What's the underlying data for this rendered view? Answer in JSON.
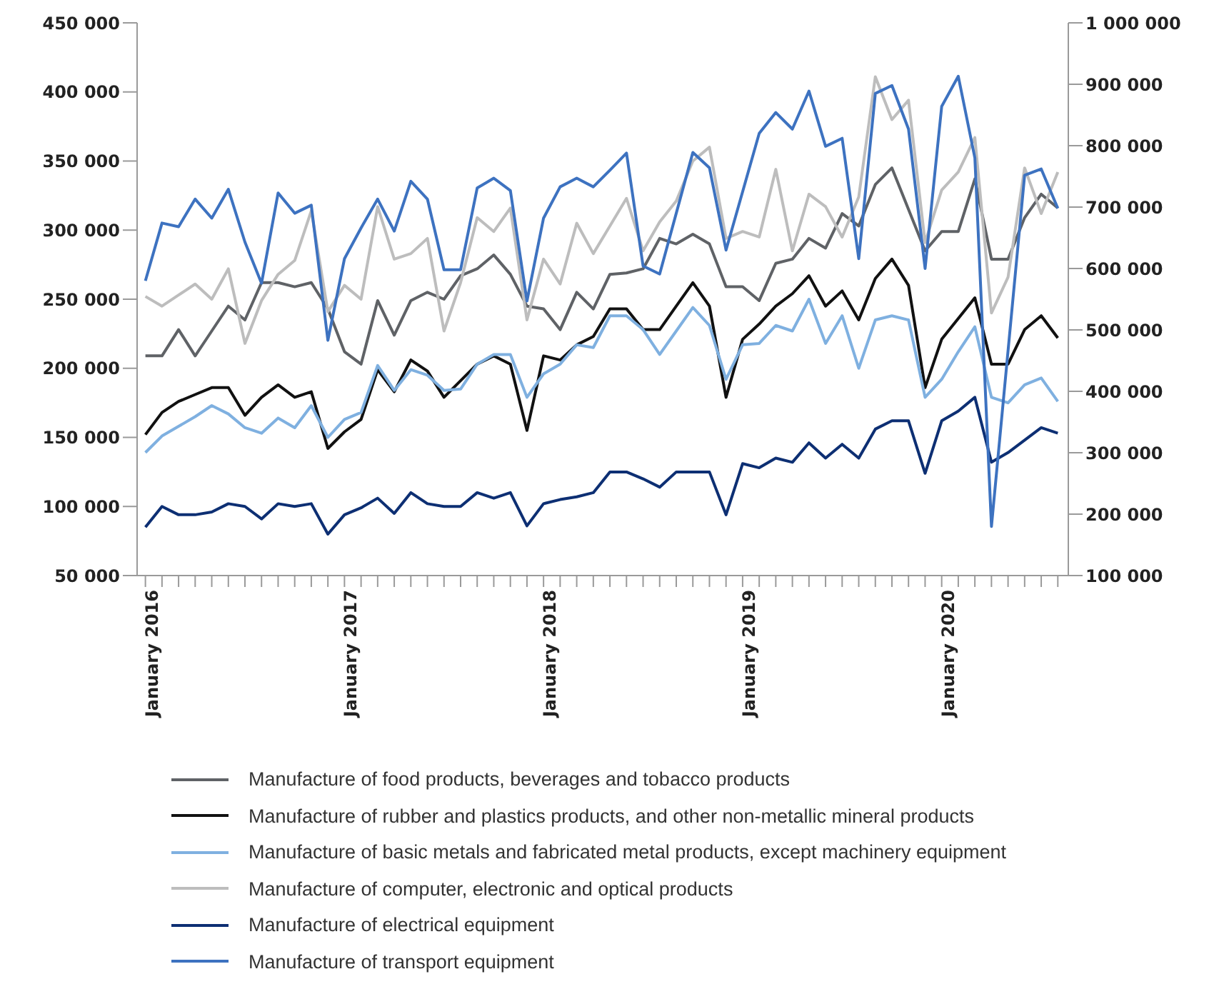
{
  "chart_data": {
    "type": "line",
    "x": [
      "2016-01",
      "2016-02",
      "2016-03",
      "2016-04",
      "2016-05",
      "2016-06",
      "2016-07",
      "2016-08",
      "2016-09",
      "2016-10",
      "2016-11",
      "2016-12",
      "2017-01",
      "2017-02",
      "2017-03",
      "2017-04",
      "2017-05",
      "2017-06",
      "2017-07",
      "2017-08",
      "2017-09",
      "2017-10",
      "2017-11",
      "2017-12",
      "2018-01",
      "2018-02",
      "2018-03",
      "2018-04",
      "2018-05",
      "2018-06",
      "2018-07",
      "2018-08",
      "2018-09",
      "2018-10",
      "2018-11",
      "2018-12",
      "2019-01",
      "2019-02",
      "2019-03",
      "2019-04",
      "2019-05",
      "2019-06",
      "2019-07",
      "2019-08",
      "2019-09",
      "2019-10",
      "2019-11",
      "2019-12",
      "2020-01",
      "2020-02",
      "2020-03",
      "2020-04",
      "2020-05",
      "2020-06",
      "2020-07",
      "2020-08"
    ],
    "series": [
      {
        "name": "Manufacture of food products, beverages and tobacco products",
        "color": "#5f6266",
        "values": [
          209000,
          209000,
          228000,
          209000,
          227000,
          245000,
          235000,
          262000,
          262000,
          259000,
          262000,
          243000,
          212000,
          203000,
          249000,
          224000,
          249000,
          255000,
          250000,
          267000,
          272000,
          282000,
          268000,
          245000,
          243000,
          228000,
          255000,
          243000,
          268000,
          269000,
          272000,
          294000,
          290000,
          297000,
          290000,
          259000,
          259000,
          249000,
          276000,
          279000,
          294000,
          287000,
          312000,
          303000,
          333000,
          345000,
          315000,
          285000,
          299000,
          299000,
          337000,
          279000,
          279000,
          309000,
          326000,
          316000
        ]
      },
      {
        "name": "Manufacture of rubber and plastics products, and other non-metallic mineral products",
        "color": "#111111",
        "values": [
          152000,
          168000,
          176000,
          181000,
          186000,
          186000,
          166000,
          179000,
          188000,
          179000,
          183000,
          142000,
          154000,
          163000,
          199000,
          183000,
          206000,
          198000,
          179000,
          191000,
          203000,
          209000,
          203000,
          155000,
          209000,
          206000,
          217000,
          223000,
          243000,
          243000,
          228000,
          228000,
          245000,
          262000,
          245000,
          179000,
          221000,
          232000,
          245000,
          254000,
          267000,
          245000,
          256000,
          235000,
          265000,
          279000,
          260000,
          186000,
          221000,
          236000,
          251000,
          203000,
          203000,
          228000,
          238000,
          222000
        ]
      },
      {
        "name": "Manufacture of basic metals and fabricated metal products, except machinery equipment",
        "color": "#7fb0e0",
        "values": [
          139000,
          151000,
          158000,
          165000,
          173000,
          167000,
          157000,
          153000,
          164000,
          157000,
          173000,
          150000,
          163000,
          168000,
          202000,
          184000,
          199000,
          195000,
          184000,
          185000,
          203000,
          210000,
          210000,
          179000,
          196000,
          203000,
          217000,
          215000,
          238000,
          238000,
          228000,
          210000,
          227000,
          244000,
          231000,
          192000,
          217000,
          218000,
          231000,
          227000,
          250000,
          218000,
          238000,
          200000,
          235000,
          238000,
          235000,
          179000,
          192000,
          212000,
          230000,
          179000,
          175000,
          188000,
          193000,
          176000
        ]
      },
      {
        "name": "Manufacture of computer, electronic and optical products",
        "color": "#bdbdbd",
        "values": [
          252000,
          245000,
          253000,
          261000,
          250000,
          272000,
          218000,
          249000,
          268000,
          278000,
          314000,
          241000,
          260000,
          250000,
          317000,
          279000,
          283000,
          294000,
          227000,
          262000,
          309000,
          299000,
          316000,
          235000,
          279000,
          261000,
          305000,
          283000,
          303000,
          323000,
          285000,
          306000,
          321000,
          350000,
          360000,
          294000,
          299000,
          295000,
          344000,
          285000,
          326000,
          317000,
          295000,
          324000,
          411000,
          380000,
          394000,
          291000,
          329000,
          342000,
          367000,
          240000,
          266000,
          345000,
          312000,
          342000
        ]
      },
      {
        "name": "Manufacture of electrical equipment",
        "color": "#0d2f73",
        "values": [
          85000,
          100000,
          94000,
          94000,
          96000,
          102000,
          100000,
          91000,
          102000,
          100000,
          102000,
          80000,
          94000,
          99000,
          106000,
          95000,
          110000,
          102000,
          100000,
          100000,
          110000,
          106000,
          110000,
          86000,
          102000,
          105000,
          107000,
          110000,
          125000,
          125000,
          120000,
          114000,
          125000,
          125000,
          125000,
          94000,
          131000,
          128000,
          135000,
          132000,
          146000,
          135000,
          145000,
          135000,
          156000,
          162000,
          162000,
          124000,
          162000,
          169000,
          179000,
          132000,
          139000,
          148000,
          157000,
          153000
        ]
      },
      {
        "name": "Manufacture of transport equipment",
        "color": "#3d72c0",
        "axis": "y2",
        "values": [
          580000,
          674000,
          668000,
          713000,
          682000,
          729000,
          643000,
          576000,
          723000,
          690000,
          703000,
          483000,
          616000,
          666000,
          713000,
          661000,
          742000,
          713000,
          598000,
          598000,
          731000,
          747000,
          727000,
          547000,
          682000,
          733000,
          747000,
          733000,
          760000,
          788000,
          604000,
          591000,
          690000,
          789000,
          764000,
          630000,
          725000,
          820000,
          854000,
          827000,
          889000,
          799000,
          812000,
          616000,
          885000,
          898000,
          827000,
          600000,
          864000,
          913000,
          780000,
          180000,
          466000,
          752000,
          762000,
          698000
        ]
      }
    ],
    "xlim": [
      "2015-12-16",
      "2020-08-20"
    ],
    "xticks": [
      {
        "value": "2016-01",
        "label": "January 2016"
      },
      {
        "value": "2016-02",
        "label": null
      },
      {
        "value": "2016-03",
        "label": null
      },
      {
        "value": "2016-04",
        "label": null
      },
      {
        "value": "2016-05",
        "label": null
      },
      {
        "value": "2016-06",
        "label": null
      },
      {
        "value": "2016-07",
        "label": null
      },
      {
        "value": "2016-08",
        "label": null
      },
      {
        "value": "2016-09",
        "label": null
      },
      {
        "value": "2016-10",
        "label": null
      },
      {
        "value": "2016-11",
        "label": null
      },
      {
        "value": "2016-12",
        "label": null
      },
      {
        "value": "2017-01",
        "label": "January 2017"
      },
      {
        "value": "2017-02",
        "label": null
      },
      {
        "value": "2017-03",
        "label": null
      },
      {
        "value": "2017-04",
        "label": null
      },
      {
        "value": "2017-05",
        "label": null
      },
      {
        "value": "2017-06",
        "label": null
      },
      {
        "value": "2017-07",
        "label": null
      },
      {
        "value": "2017-08",
        "label": null
      },
      {
        "value": "2017-09",
        "label": null
      },
      {
        "value": "2017-10",
        "label": null
      },
      {
        "value": "2017-11",
        "label": null
      },
      {
        "value": "2017-12",
        "label": null
      },
      {
        "value": "2018-01",
        "label": "January 2018"
      },
      {
        "value": "2018-02",
        "label": null
      },
      {
        "value": "2018-03",
        "label": null
      },
      {
        "value": "2018-04",
        "label": null
      },
      {
        "value": "2018-05",
        "label": null
      },
      {
        "value": "2018-06",
        "label": null
      },
      {
        "value": "2018-07",
        "label": null
      },
      {
        "value": "2018-08",
        "label": null
      },
      {
        "value": "2018-09",
        "label": null
      },
      {
        "value": "2018-10",
        "label": null
      },
      {
        "value": "2018-11",
        "label": null
      },
      {
        "value": "2018-12",
        "label": null
      },
      {
        "value": "2019-01",
        "label": "January 2019"
      },
      {
        "value": "2019-02",
        "label": null
      },
      {
        "value": "2019-03",
        "label": null
      },
      {
        "value": "2019-04",
        "label": null
      },
      {
        "value": "2019-05",
        "label": null
      },
      {
        "value": "2019-06",
        "label": null
      },
      {
        "value": "2019-07",
        "label": null
      },
      {
        "value": "2019-08",
        "label": null
      },
      {
        "value": "2019-09",
        "label": null
      },
      {
        "value": "2019-10",
        "label": null
      },
      {
        "value": "2019-11",
        "label": null
      },
      {
        "value": "2019-12",
        "label": null
      },
      {
        "value": "2020-01",
        "label": "January 2020"
      },
      {
        "value": "2020-02",
        "label": null
      },
      {
        "value": "2020-03",
        "label": null
      },
      {
        "value": "2020-04",
        "label": null
      },
      {
        "value": "2020-05",
        "label": null
      },
      {
        "value": "2020-06",
        "label": null
      },
      {
        "value": "2020-07",
        "label": null
      },
      {
        "value": "2020-08",
        "label": null
      }
    ],
    "ylim": [
      50000,
      450000
    ],
    "yticks": [
      {
        "value": 50000,
        "label": "50 000"
      },
      {
        "value": 100000,
        "label": "100 000"
      },
      {
        "value": 150000,
        "label": "150 000"
      },
      {
        "value": 200000,
        "label": "200 000"
      },
      {
        "value": 250000,
        "label": "250 000"
      },
      {
        "value": 300000,
        "label": "300 000"
      },
      {
        "value": 350000,
        "label": "350 000"
      },
      {
        "value": 400000,
        "label": "400 000"
      },
      {
        "value": 450000,
        "label": "450 000"
      }
    ],
    "y2lim": [
      100000,
      1000000
    ],
    "y2ticks": [
      {
        "value": 100000,
        "label": "100 000"
      },
      {
        "value": 200000,
        "label": "200 000"
      },
      {
        "value": 300000,
        "label": "300 000"
      },
      {
        "value": 400000,
        "label": "400 000"
      },
      {
        "value": 500000,
        "label": "500 000"
      },
      {
        "value": 600000,
        "label": "600 000"
      },
      {
        "value": 700000,
        "label": "700 000"
      },
      {
        "value": 800000,
        "label": "800 000"
      },
      {
        "value": 900000,
        "label": "900 000"
      },
      {
        "value": 1000000,
        "label": "1 000 000"
      }
    ],
    "legend": "bottom"
  }
}
